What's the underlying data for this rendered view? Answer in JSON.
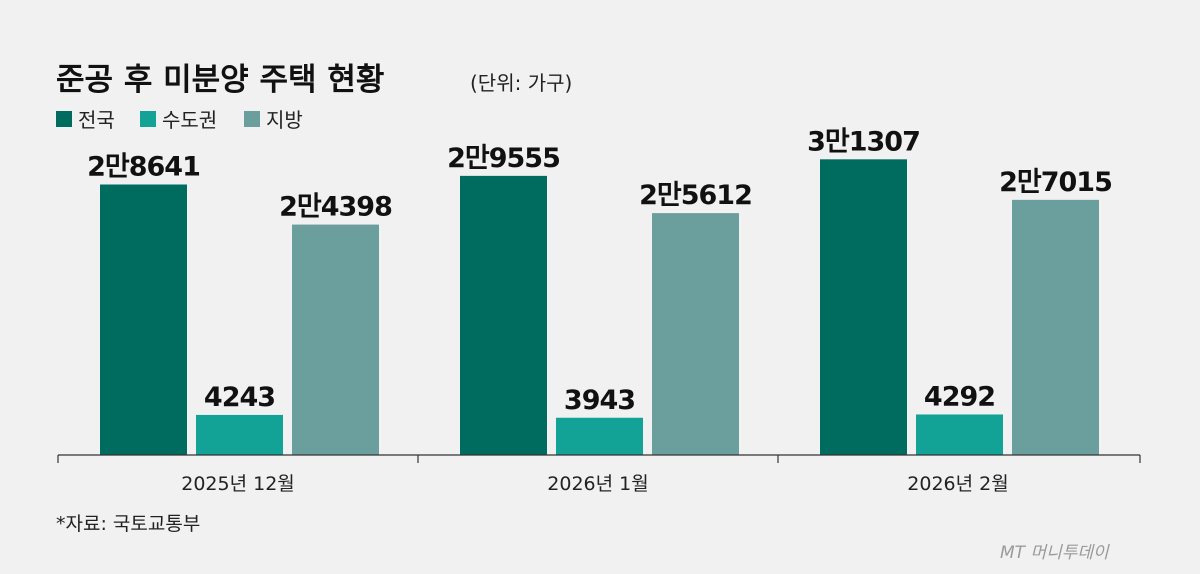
{
  "chart_data": {
    "type": "bar",
    "title": "준공 후 미분양 주택 현황",
    "unit_label": "(단위: 가구)",
    "categories": [
      "2025년 12월",
      "2026년 1월",
      "2026년 2월"
    ],
    "series": [
      {
        "name": "전국",
        "color": "#006b5f",
        "values": [
          28641,
          29555,
          31307
        ],
        "labels": [
          "2만8641",
          "2만9555",
          "3만1307"
        ]
      },
      {
        "name": "수도권",
        "color": "#12a396",
        "values": [
          4243,
          3943,
          4292
        ],
        "labels": [
          "4243",
          "3943",
          "4292"
        ]
      },
      {
        "name": "지방",
        "color": "#6b9f9e",
        "values": [
          24398,
          25612,
          27015
        ],
        "labels": [
          "2만4398",
          "2만5612",
          "2만7015"
        ]
      }
    ],
    "ylim": [
      0,
      36000
    ],
    "legend_position": "top-left",
    "grid": false
  },
  "source": "*자료: 국토교통부",
  "watermark": "MT 머니투데이"
}
